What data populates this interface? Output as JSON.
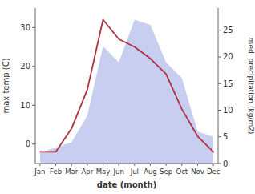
{
  "chart_data": {
    "type": "line",
    "categories": [
      "Jan",
      "Feb",
      "Mar",
      "Apr",
      "May",
      "Jun",
      "Jul",
      "Aug",
      "Sep",
      "Oct",
      "Nov",
      "Dec"
    ],
    "series": [
      {
        "type": "area",
        "axis": "y2",
        "color": "#c8cef0",
        "values": [
          2,
          3,
          4,
          9,
          22,
          19,
          27,
          26,
          19,
          16,
          6,
          5
        ]
      },
      {
        "type": "line",
        "color": "#b03040",
        "values": [
          -2,
          -2,
          4,
          14,
          32,
          27,
          25,
          22,
          18,
          9,
          2,
          -2
        ]
      }
    ],
    "xlabel": "date (month)",
    "ylabel": "max temp (C)",
    "y2label": "med. precipitation (kg/m2)",
    "ylim": [
      -5,
      35
    ],
    "yticks": [
      0,
      10,
      20,
      30
    ],
    "y2lim": [
      0,
      29.17
    ],
    "y2ticks": [
      0,
      5,
      10,
      15,
      20,
      25
    ]
  }
}
